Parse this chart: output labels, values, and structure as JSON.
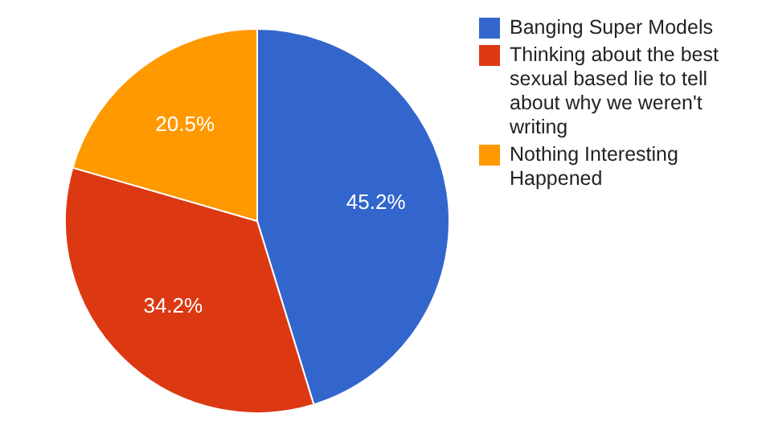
{
  "chart_data": {
    "type": "pie",
    "categories": [
      "Banging Super Models",
      "Thinking about the best sexual based lie to tell about why we weren't writing",
      "Nothing Interesting Happened"
    ],
    "values": [
      45.2,
      34.2,
      20.5
    ],
    "colors": [
      "#3366cc",
      "#dc3912",
      "#ff9900"
    ],
    "value_labels": [
      "45.2%",
      "34.2%",
      "20.5%"
    ],
    "legend": "right"
  }
}
